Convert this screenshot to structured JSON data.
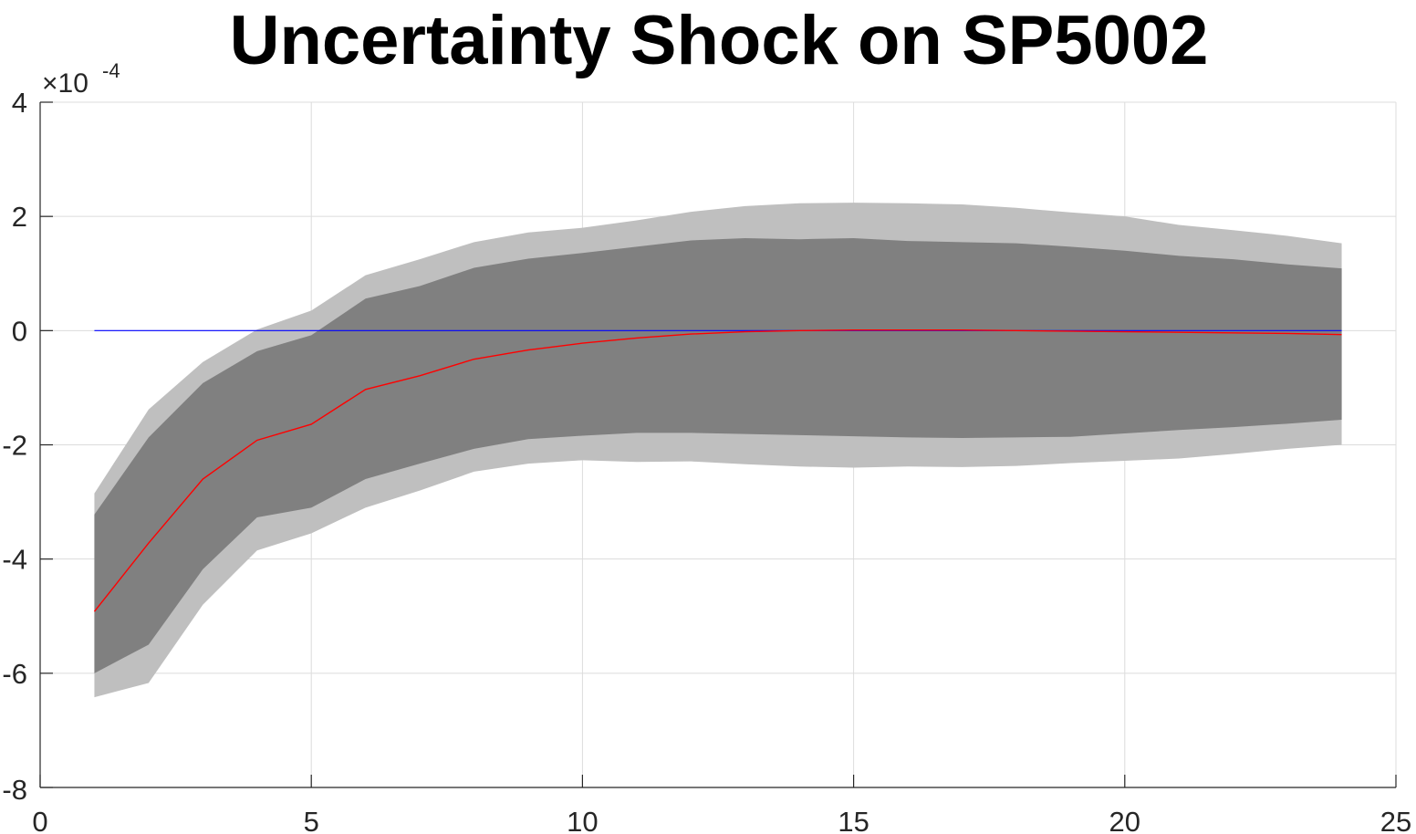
{
  "chart_data": {
    "type": "area",
    "title": "Uncertainty Shock on SP5002",
    "xlabel": "",
    "ylabel": "",
    "y_exponent_label": "×10",
    "y_exponent_power": "-4",
    "xlim": [
      0,
      25
    ],
    "ylim": [
      -8,
      4
    ],
    "x_ticks": [
      0,
      5,
      10,
      15,
      20,
      25
    ],
    "x_tick_labels": [
      "0",
      "5",
      "10",
      "15",
      "20",
      "25"
    ],
    "y_ticks": [
      4,
      2,
      0,
      -2,
      -4,
      -6,
      -8
    ],
    "y_tick_labels": [
      "4",
      "2",
      "0",
      "-2",
      "-4",
      "-6",
      "-8"
    ],
    "grid": true,
    "x": [
      1,
      2,
      3,
      4,
      5,
      6,
      7,
      8,
      9,
      10,
      11,
      12,
      13,
      14,
      15,
      16,
      17,
      18,
      19,
      20,
      21,
      22,
      23,
      24
    ],
    "series": [
      {
        "role": "outer-band-upper",
        "values": [
          -2.85,
          -1.38,
          -0.55,
          0.02,
          0.35,
          0.97,
          1.25,
          1.55,
          1.72,
          1.8,
          1.93,
          2.08,
          2.18,
          2.23,
          2.24,
          2.23,
          2.21,
          2.15,
          2.07,
          2.0,
          1.85,
          1.76,
          1.66,
          1.53
        ]
      },
      {
        "role": "outer-band-lower",
        "values": [
          -6.42,
          -6.17,
          -4.8,
          -3.85,
          -3.55,
          -3.1,
          -2.8,
          -2.47,
          -2.33,
          -2.27,
          -2.3,
          -2.29,
          -2.34,
          -2.38,
          -2.4,
          -2.38,
          -2.39,
          -2.37,
          -2.32,
          -2.28,
          -2.24,
          -2.16,
          -2.07,
          -2.0
        ]
      },
      {
        "role": "inner-band-upper",
        "values": [
          -3.22,
          -1.87,
          -0.92,
          -0.36,
          -0.08,
          0.56,
          0.78,
          1.1,
          1.26,
          1.36,
          1.47,
          1.58,
          1.62,
          1.6,
          1.62,
          1.57,
          1.55,
          1.53,
          1.47,
          1.4,
          1.31,
          1.25,
          1.16,
          1.09
        ]
      },
      {
        "role": "inner-band-lower",
        "values": [
          -6.0,
          -5.5,
          -4.18,
          -3.27,
          -3.1,
          -2.6,
          -2.33,
          -2.07,
          -1.9,
          -1.84,
          -1.79,
          -1.79,
          -1.81,
          -1.83,
          -1.85,
          -1.87,
          -1.88,
          -1.87,
          -1.86,
          -1.8,
          -1.74,
          -1.69,
          -1.63,
          -1.56
        ]
      },
      {
        "role": "median-response",
        "values": [
          -4.92,
          -3.72,
          -2.6,
          -1.92,
          -1.64,
          -1.03,
          -0.79,
          -0.5,
          -0.34,
          -0.22,
          -0.13,
          -0.06,
          -0.02,
          0.0,
          0.01,
          0.01,
          0.01,
          0.0,
          -0.01,
          -0.02,
          -0.03,
          -0.04,
          -0.05,
          -0.07
        ]
      },
      {
        "role": "zero-line",
        "values": [
          0,
          0,
          0,
          0,
          0,
          0,
          0,
          0,
          0,
          0,
          0,
          0,
          0,
          0,
          0,
          0,
          0,
          0,
          0,
          0,
          0,
          0,
          0,
          0
        ]
      }
    ],
    "colors": {
      "outer_band": "#bfbfbf",
      "inner_band": "#808080",
      "median_line": "#ff0000",
      "zero_line": "#0000ff",
      "axis": "#262626",
      "grid": "#dcdcdc"
    }
  }
}
